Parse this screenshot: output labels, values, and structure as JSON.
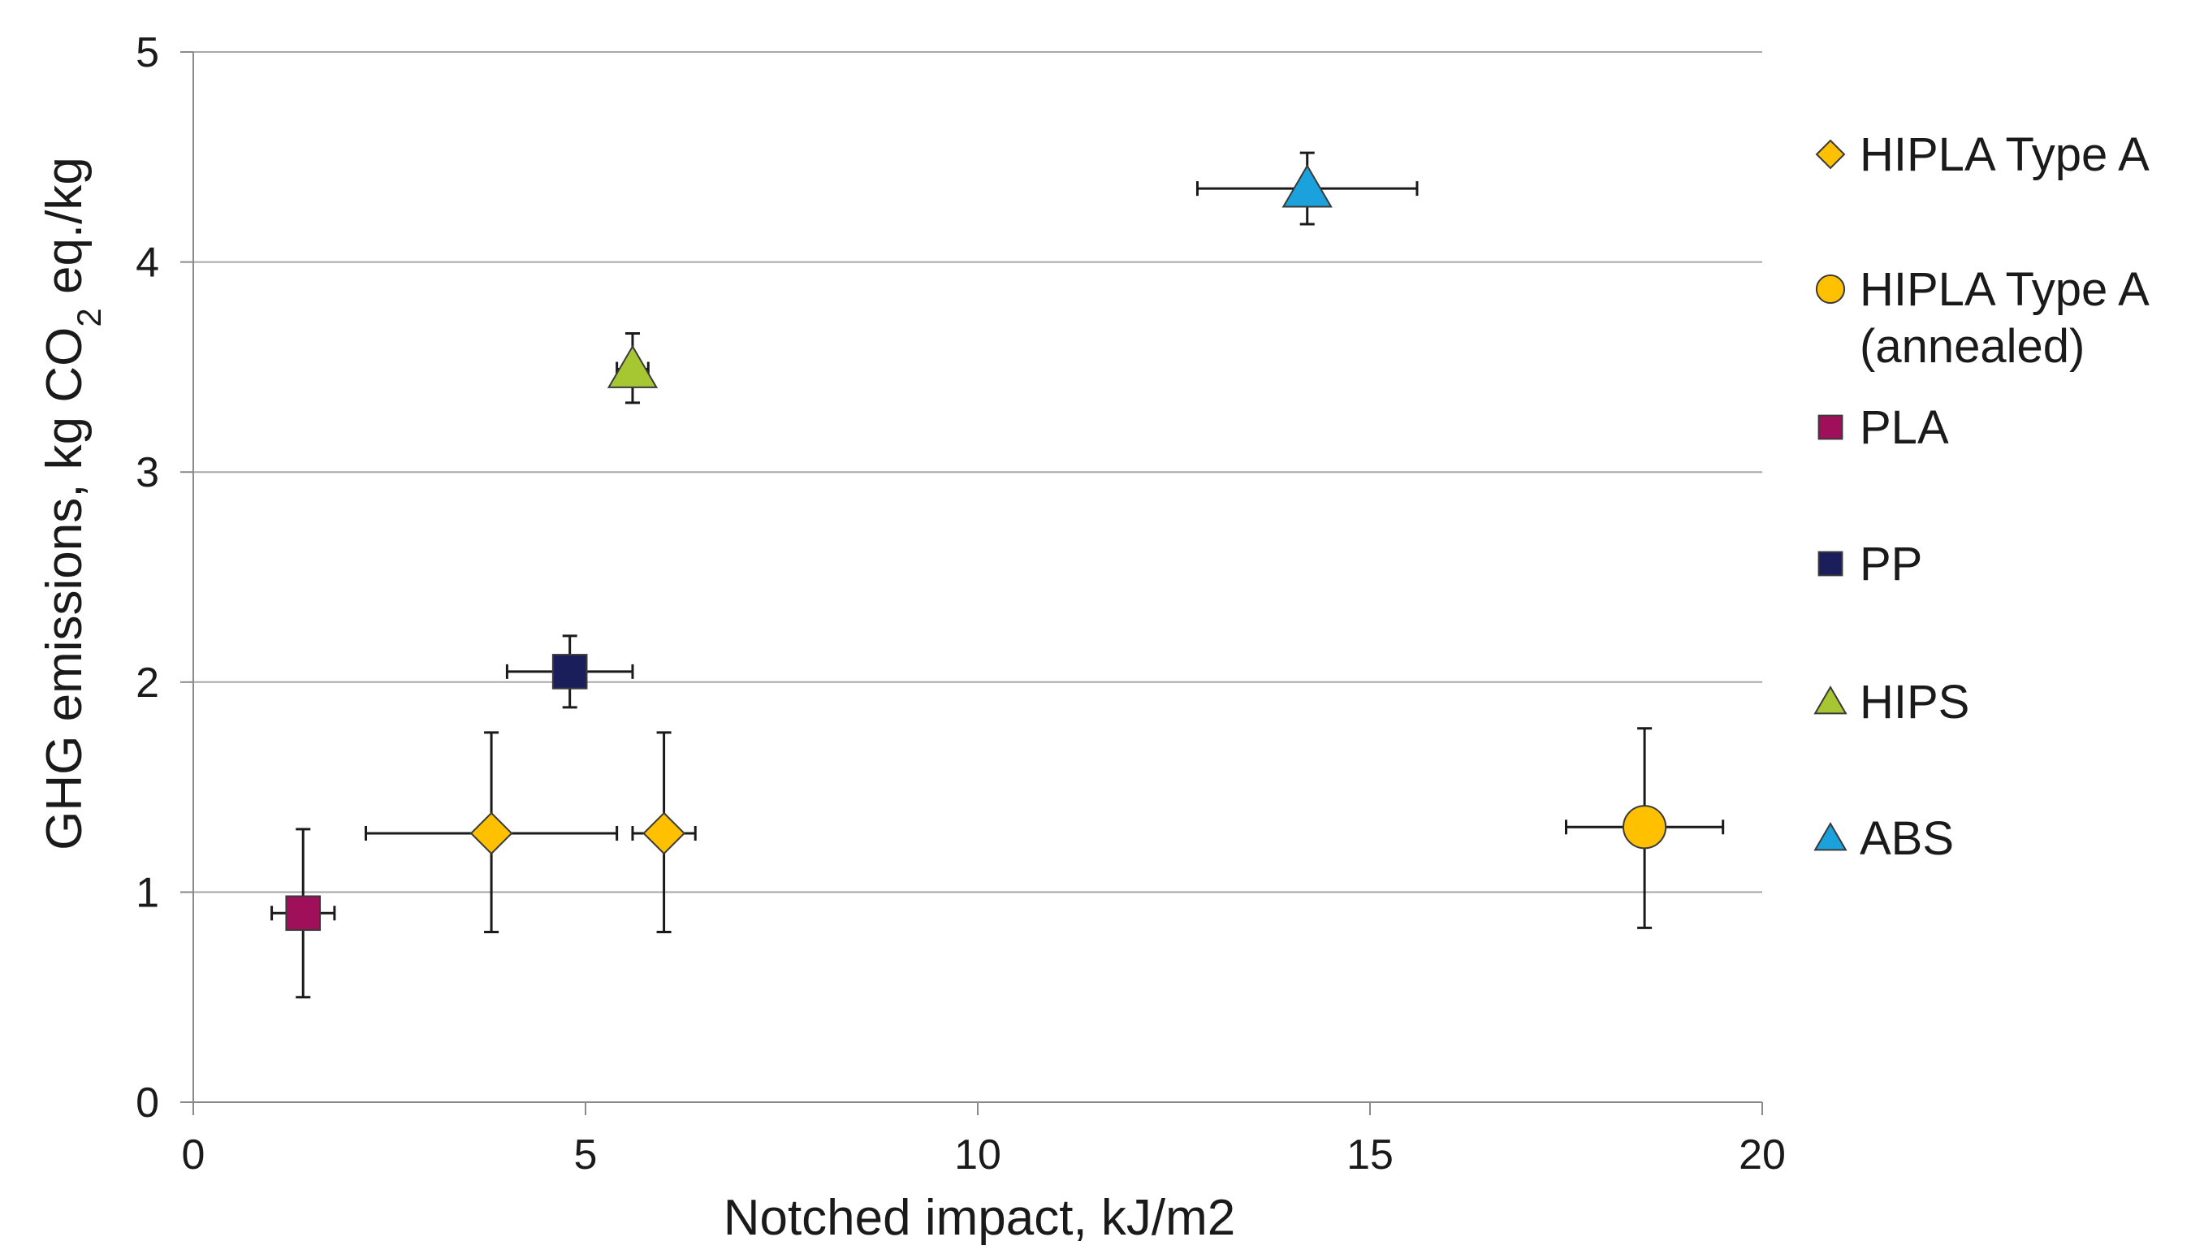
{
  "chart_data": {
    "type": "scatter",
    "xlabel": "Notched impact, kJ/m2",
    "ylabel_parts": [
      "GHG emissions, kg CO",
      "2",
      " eq./kg"
    ],
    "xlim": [
      0,
      20
    ],
    "ylim": [
      0,
      5
    ],
    "x_ticks": [
      "0",
      "5",
      "10",
      "15",
      "20"
    ],
    "y_ticks": [
      "0",
      "1",
      "2",
      "3",
      "4",
      "5"
    ],
    "grid": "horizontal",
    "legend_position": "right",
    "series": [
      {
        "name": "HIPLA Type A",
        "marker": "diamond",
        "color": "#FFC000",
        "points": [
          {
            "x": 3.8,
            "y": 1.28,
            "xerr": [
              2.2,
              5.4
            ],
            "yerr": [
              0.81,
              1.76
            ]
          },
          {
            "x": 6.0,
            "y": 1.28,
            "xerr": [
              5.6,
              6.4
            ],
            "yerr": [
              0.81,
              1.76
            ]
          }
        ]
      },
      {
        "name_lines": [
          "HIPLA Type A",
          "(annealed)"
        ],
        "marker": "circle",
        "color": "#FFC000",
        "points": [
          {
            "x": 18.5,
            "y": 1.31,
            "xerr": [
              17.5,
              19.5
            ],
            "yerr": [
              0.83,
              1.78
            ]
          }
        ]
      },
      {
        "name": "PLA",
        "marker": "square",
        "color": "#A0105A",
        "points": [
          {
            "x": 1.4,
            "y": 0.9,
            "xerr": [
              1.0,
              1.8
            ],
            "yerr": [
              0.5,
              1.3
            ]
          }
        ]
      },
      {
        "name": "PP",
        "marker": "square",
        "color": "#1A1F5C",
        "points": [
          {
            "x": 4.8,
            "y": 2.05,
            "xerr": [
              4.0,
              5.6
            ],
            "yerr": [
              1.88,
              2.22
            ]
          }
        ]
      },
      {
        "name": "HIPS",
        "marker": "triangle",
        "color": "#A6C632",
        "points": [
          {
            "x": 5.6,
            "y": 3.49,
            "xerr": [
              5.4,
              5.8
            ],
            "yerr": [
              3.33,
              3.66
            ]
          }
        ]
      },
      {
        "name": "ABS",
        "marker": "triangle",
        "color": "#1BA1DB",
        "points": [
          {
            "x": 14.2,
            "y": 4.35,
            "xerr": [
              12.8,
              15.6
            ],
            "yerr": [
              4.18,
              4.52
            ]
          }
        ]
      }
    ]
  }
}
